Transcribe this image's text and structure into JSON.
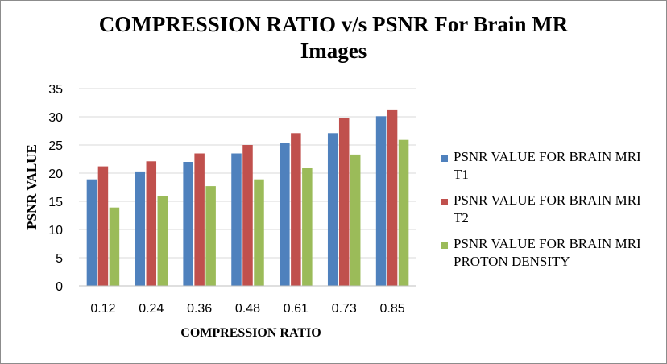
{
  "chart_data": {
    "type": "bar",
    "title_lines": [
      "COMPRESSION RATIO v/s PSNR For Brain MR",
      "Images"
    ],
    "xlabel": "COMPRESSION RATIO",
    "ylabel": "PSNR VALUE",
    "categories": [
      "0.12",
      "0.24",
      "0.36",
      "0.48",
      "0.61",
      "0.73",
      "0.85"
    ],
    "ylim": [
      0,
      35
    ],
    "yticks": [
      0,
      5,
      10,
      15,
      20,
      25,
      30,
      35
    ],
    "grid": true,
    "legend_position": "right",
    "series": [
      {
        "name": "PSNR VALUE FOR BRAIN MRI T1",
        "color": "#4f81bd",
        "values": [
          18.9,
          20.3,
          22.0,
          23.5,
          25.3,
          27.1,
          30.1
        ]
      },
      {
        "name": "PSNR VALUE FOR BRAIN MRI T2",
        "color": "#c0504d",
        "values": [
          21.2,
          22.1,
          23.5,
          25.0,
          27.1,
          29.8,
          31.3
        ]
      },
      {
        "name": "PSNR VALUE FOR BRAIN MRI PROTON DENSITY",
        "color": "#9bbb59",
        "values": [
          13.9,
          16.0,
          17.7,
          18.9,
          20.9,
          23.3,
          25.9
        ]
      }
    ]
  }
}
